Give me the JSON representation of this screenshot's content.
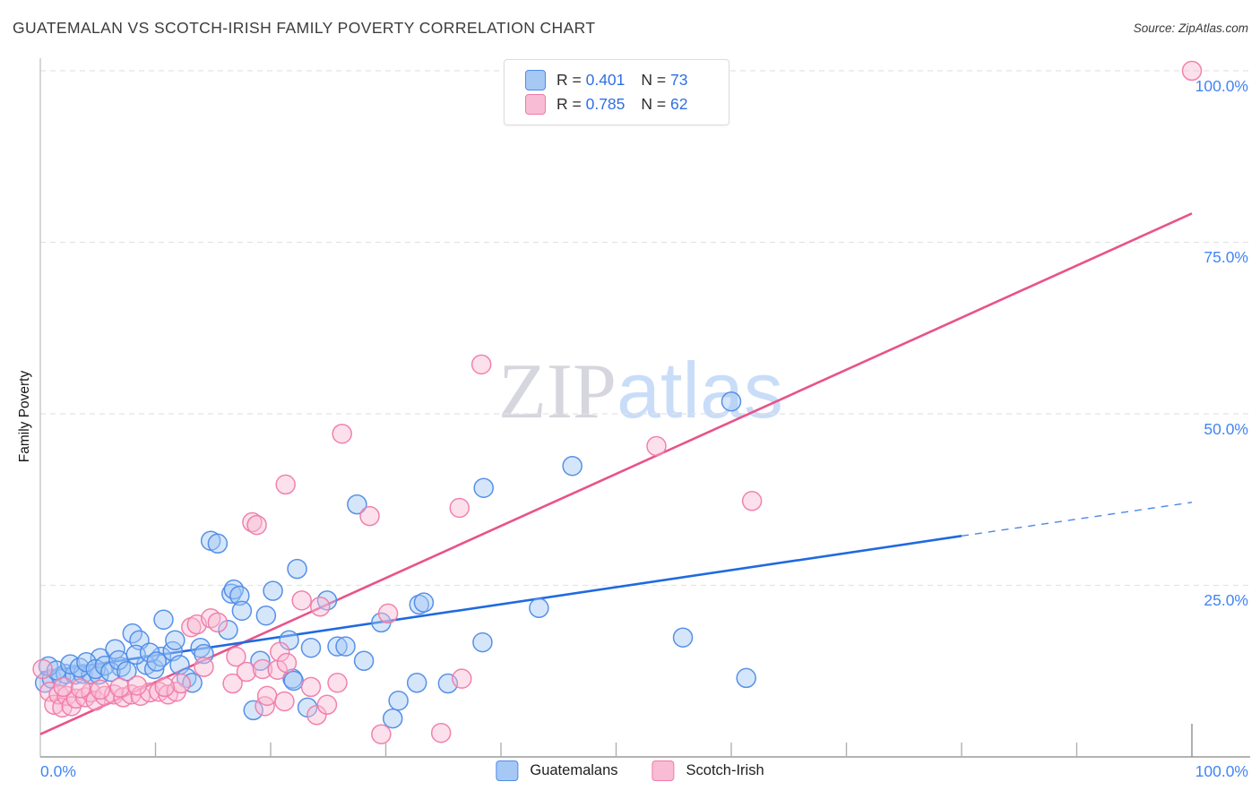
{
  "header": {
    "title": "GUATEMALAN VS SCOTCH-IRISH FAMILY POVERTY CORRELATION CHART",
    "source": "Source: ZipAtlas.com"
  },
  "watermark": {
    "zip": "ZIP",
    "atlas": "atlas"
  },
  "stats_legend": {
    "rows": [
      {
        "series": "guatemalans",
        "r_label": "R =",
        "r_value": "0.401",
        "n_label": "N =",
        "n_value": "73"
      },
      {
        "series": "scotch_irish",
        "r_label": "R =",
        "r_value": "0.785",
        "n_label": "N =",
        "n_value": "62"
      }
    ]
  },
  "y_axis": {
    "label": "Family Poverty",
    "tick_labels": [
      "100.0%",
      "75.0%",
      "50.0%",
      "25.0%"
    ],
    "tick_values": [
      100,
      75,
      50,
      25
    ]
  },
  "x_axis": {
    "min_label": "0.0%",
    "max_label": "100.0%",
    "tick_values": [
      10,
      20,
      30,
      40,
      50,
      60,
      70,
      80,
      90,
      100
    ]
  },
  "bottom_legend": [
    {
      "series": "guatemalans",
      "label": "Guatemalans"
    },
    {
      "series": "scotch_irish",
      "label": "Scotch-Irish"
    }
  ],
  "colors": {
    "blue_fill": "#a5c8f5",
    "blue_stroke": "#4e8be8",
    "pink_fill": "#f8bcd4",
    "pink_stroke": "#f07ba8",
    "blue_trend": "#1f6ae0",
    "pink_trend": "#e8538a",
    "grid": "#e4e4e4",
    "axis_left": "#c4c4c4",
    "axis_bottom": "#9a9a9a",
    "tick": "#b0b0b0",
    "tick_major": "#8e8e8e",
    "axis_label_blue": "#4285f4"
  },
  "chart_data": {
    "type": "scatter",
    "title": "GUATEMALAN VS SCOTCH-IRISH FAMILY POVERTY CORRELATION CHART",
    "xlabel": "",
    "ylabel": "Family Poverty",
    "xlim": [
      0,
      100
    ],
    "ylim": [
      0,
      100
    ],
    "x_units": "percent",
    "y_units": "percent Family Poverty",
    "grid": "horizontal-dashed",
    "legend_position": "bottom-center",
    "series": [
      {
        "name": "Guatemalans",
        "R": 0.401,
        "N": 73,
        "points": [
          [
            0.4,
            10.8
          ],
          [
            1.0,
            11.4
          ],
          [
            1.8,
            11.7
          ],
          [
            2.2,
            12.1
          ],
          [
            3.0,
            12.0
          ],
          [
            3.7,
            12.1
          ],
          [
            4.4,
            12.0
          ],
          [
            5.1,
            12.0
          ],
          [
            5.2,
            14.4
          ],
          [
            6.5,
            15.7
          ],
          [
            7.0,
            13.1
          ],
          [
            8.0,
            18.0
          ],
          [
            8.6,
            17.0
          ],
          [
            9.2,
            13.4
          ],
          [
            9.9,
            12.8
          ],
          [
            10.5,
            14.6
          ],
          [
            10.7,
            20.0
          ],
          [
            11.5,
            15.4
          ],
          [
            11.7,
            17.0
          ],
          [
            12.1,
            13.4
          ],
          [
            12.7,
            11.5
          ],
          [
            13.2,
            10.8
          ],
          [
            13.9,
            15.9
          ],
          [
            14.2,
            15.0
          ],
          [
            14.8,
            31.5
          ],
          [
            15.4,
            31.1
          ],
          [
            16.3,
            18.5
          ],
          [
            16.6,
            23.8
          ],
          [
            16.8,
            24.4
          ],
          [
            17.3,
            23.5
          ],
          [
            17.5,
            21.3
          ],
          [
            18.5,
            6.8
          ],
          [
            19.1,
            14.0
          ],
          [
            19.6,
            20.6
          ],
          [
            20.2,
            24.2
          ],
          [
            21.6,
            17.0
          ],
          [
            21.9,
            11.4
          ],
          [
            22.0,
            11.1
          ],
          [
            22.3,
            27.4
          ],
          [
            23.2,
            7.2
          ],
          [
            23.5,
            15.9
          ],
          [
            24.9,
            22.8
          ],
          [
            25.8,
            16.1
          ],
          [
            26.5,
            16.1
          ],
          [
            27.5,
            36.8
          ],
          [
            28.1,
            14.0
          ],
          [
            29.6,
            19.6
          ],
          [
            30.6,
            5.6
          ],
          [
            31.1,
            8.2
          ],
          [
            32.7,
            10.8
          ],
          [
            32.9,
            22.2
          ],
          [
            33.3,
            22.5
          ],
          [
            35.4,
            10.7
          ],
          [
            38.4,
            16.7
          ],
          [
            38.5,
            39.2
          ],
          [
            43.3,
            21.7
          ],
          [
            46.2,
            42.4
          ],
          [
            55.8,
            17.4
          ],
          [
            60.0,
            51.8
          ],
          [
            61.3,
            11.5
          ],
          [
            0.7,
            13.2
          ],
          [
            1.4,
            12.6
          ],
          [
            2.6,
            13.5
          ],
          [
            3.4,
            13.0
          ],
          [
            4.0,
            13.8
          ],
          [
            4.8,
            12.8
          ],
          [
            5.6,
            13.3
          ],
          [
            6.1,
            12.4
          ],
          [
            6.8,
            14.1
          ],
          [
            7.5,
            12.5
          ],
          [
            8.3,
            14.9
          ],
          [
            9.5,
            15.2
          ],
          [
            10.1,
            13.9
          ]
        ],
        "trend": {
          "x1": 0,
          "y1": 12.3,
          "x2": 80,
          "y2": 32.2,
          "dashed_to": {
            "x": 100,
            "y": 37.1
          }
        }
      },
      {
        "name": "Scotch-Irish",
        "R": 0.785,
        "N": 62,
        "points": [
          [
            0.2,
            12.8
          ],
          [
            0.8,
            9.5
          ],
          [
            1.2,
            7.6
          ],
          [
            1.6,
            9.1
          ],
          [
            1.9,
            7.2
          ],
          [
            2.3,
            8.9
          ],
          [
            2.7,
            7.4
          ],
          [
            3.1,
            8.5
          ],
          [
            3.9,
            8.7
          ],
          [
            4.4,
            9.4
          ],
          [
            4.8,
            8.2
          ],
          [
            5.6,
            8.9
          ],
          [
            6.4,
            9.1
          ],
          [
            7.2,
            8.7
          ],
          [
            7.9,
            9.1
          ],
          [
            8.7,
            8.9
          ],
          [
            9.5,
            9.4
          ],
          [
            10.3,
            9.5
          ],
          [
            11.1,
            9.1
          ],
          [
            11.8,
            9.5
          ],
          [
            12.2,
            10.7
          ],
          [
            13.1,
            18.9
          ],
          [
            13.6,
            19.3
          ],
          [
            14.2,
            13.1
          ],
          [
            14.8,
            20.2
          ],
          [
            15.4,
            19.6
          ],
          [
            16.7,
            10.7
          ],
          [
            17.0,
            14.6
          ],
          [
            17.9,
            12.4
          ],
          [
            18.4,
            34.2
          ],
          [
            18.8,
            33.8
          ],
          [
            19.3,
            12.8
          ],
          [
            19.5,
            7.4
          ],
          [
            19.7,
            8.9
          ],
          [
            20.6,
            12.7
          ],
          [
            20.8,
            15.3
          ],
          [
            21.2,
            8.1
          ],
          [
            21.3,
            39.7
          ],
          [
            21.4,
            13.7
          ],
          [
            22.7,
            22.8
          ],
          [
            23.5,
            10.2
          ],
          [
            24.0,
            6.1
          ],
          [
            24.3,
            21.9
          ],
          [
            24.9,
            7.6
          ],
          [
            25.8,
            10.8
          ],
          [
            26.2,
            47.1
          ],
          [
            28.6,
            35.1
          ],
          [
            29.6,
            3.3
          ],
          [
            30.2,
            20.9
          ],
          [
            34.8,
            3.5
          ],
          [
            36.4,
            36.3
          ],
          [
            36.6,
            11.4
          ],
          [
            38.3,
            57.2
          ],
          [
            53.5,
            45.3
          ],
          [
            61.8,
            37.3
          ],
          [
            100.0,
            100.0
          ],
          [
            2.0,
            10.2
          ],
          [
            3.5,
            10.0
          ],
          [
            5.2,
            9.8
          ],
          [
            6.9,
            10.1
          ],
          [
            8.4,
            10.4
          ],
          [
            10.8,
            10.2
          ]
        ],
        "trend": {
          "x1": 0,
          "y1": 3.3,
          "x2": 100,
          "y2": 79.2
        }
      }
    ]
  }
}
